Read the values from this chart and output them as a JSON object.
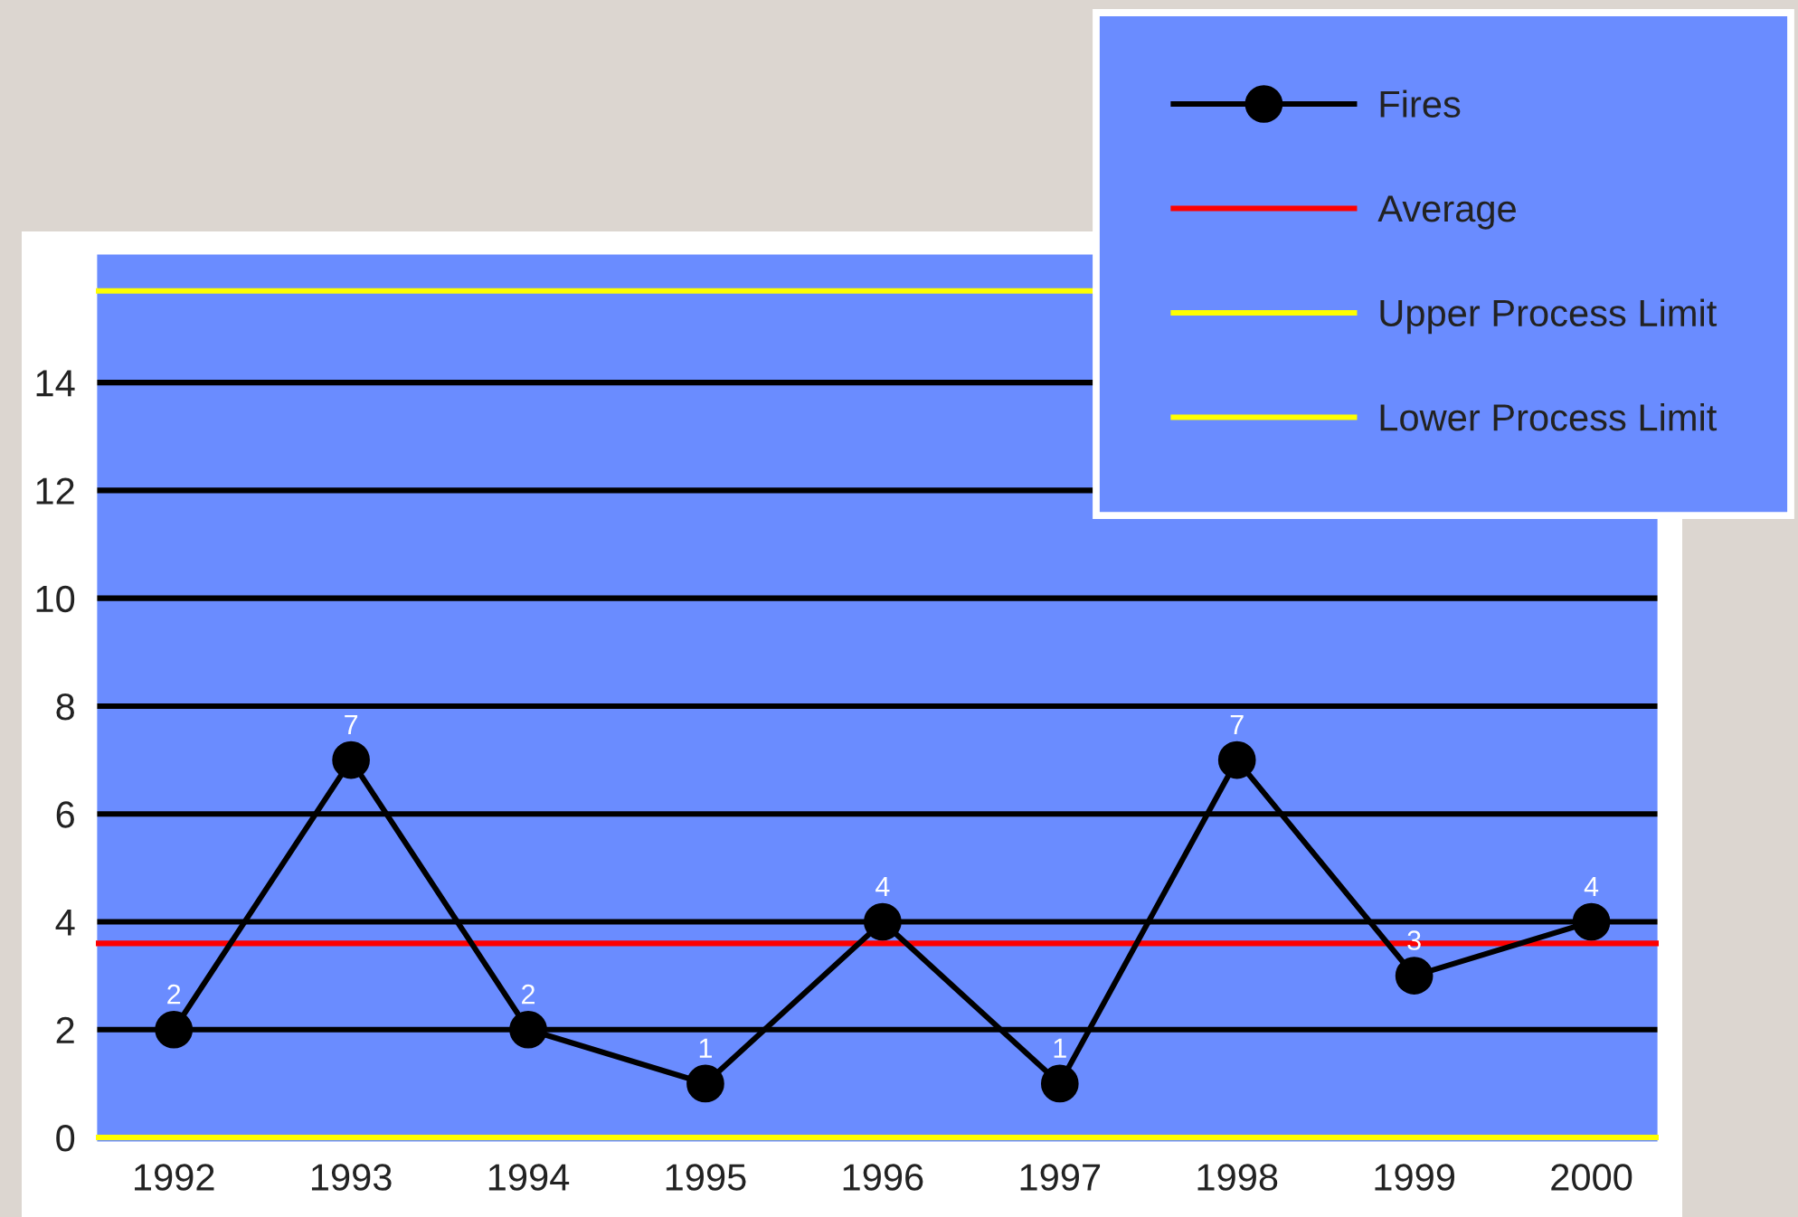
{
  "chart_data": {
    "type": "line",
    "categories": [
      "1992",
      "1993",
      "1994",
      "1995",
      "1996",
      "1997",
      "1998",
      "1999",
      "2000"
    ],
    "series": [
      {
        "name": "Fires",
        "color": "#000000",
        "values": [
          2,
          7,
          2,
          1,
          4,
          1,
          7,
          3,
          4
        ]
      }
    ],
    "data_labels": true,
    "marker": "circle",
    "line_style": "solid",
    "ylim": [
      -0.1,
      16.4
    ],
    "yticks": [
      0,
      2,
      4,
      6,
      8,
      10,
      12,
      14
    ],
    "grid": "y",
    "legend": "top right",
    "ref_lines": [
      {
        "axis": "y",
        "value": 3.6,
        "label": "Average",
        "color": "#ff0000"
      },
      {
        "axis": "y",
        "value": 15.7,
        "label": "Upper Process Limit",
        "color": "#ffff00"
      },
      {
        "axis": "y",
        "value": 0,
        "label": "Lower Process Limit",
        "color": "#ffff00"
      }
    ]
  }
}
